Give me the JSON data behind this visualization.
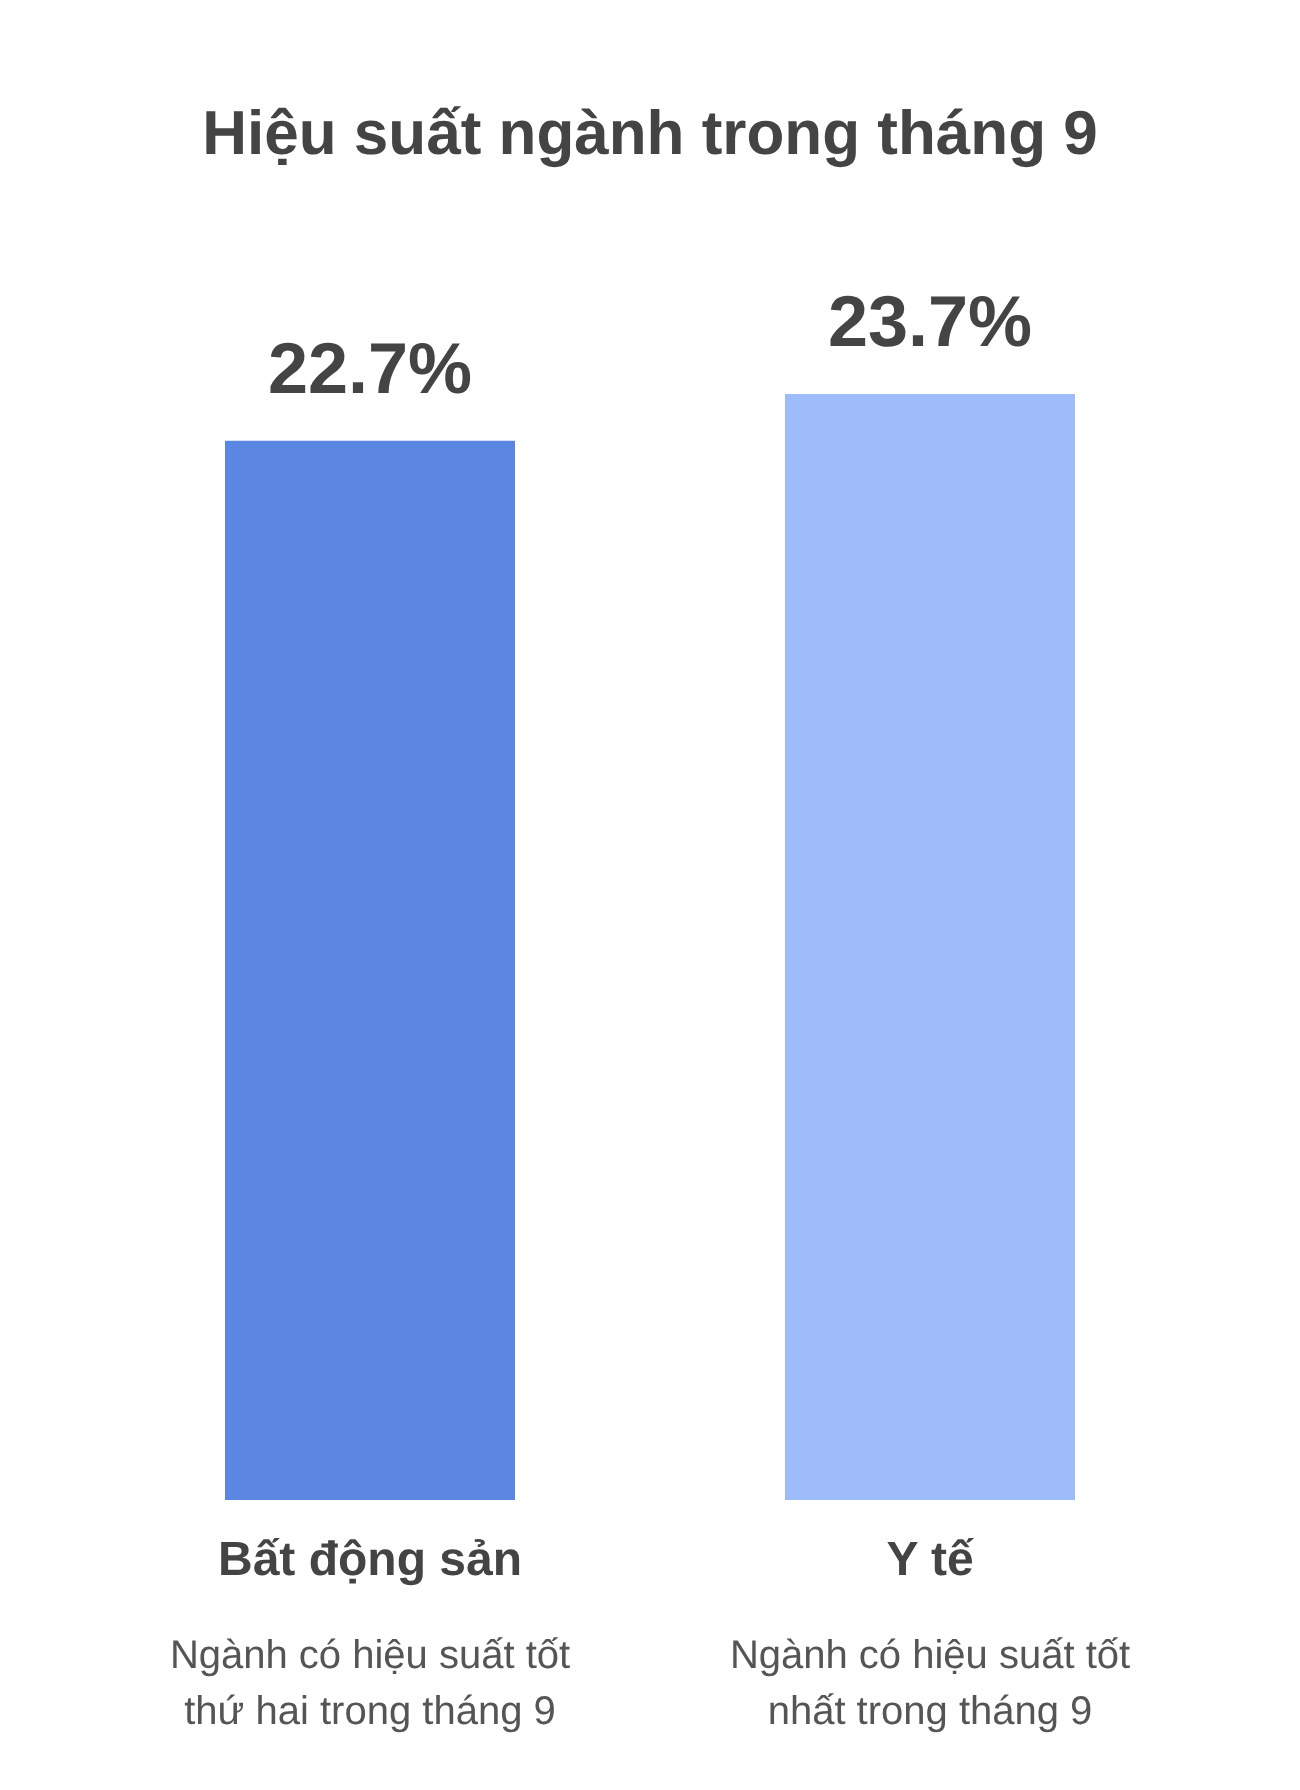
{
  "chart_data": {
    "type": "bar",
    "title": "Hiệu suất ngành trong tháng 9",
    "categories": [
      "Bất động sản",
      "Y tế"
    ],
    "values": [
      22.7,
      23.7
    ],
    "colors": [
      "#5b87e2",
      "#9dbcf9"
    ],
    "value_labels": [
      "22.7%",
      "23.7%"
    ],
    "tick_labels": "x",
    "annotations": [
      "Ngành có hiệu suất tốt thứ hai trong tháng 9",
      "Ngành có hiệu suất tốt nhất trong tháng 9"
    ]
  }
}
